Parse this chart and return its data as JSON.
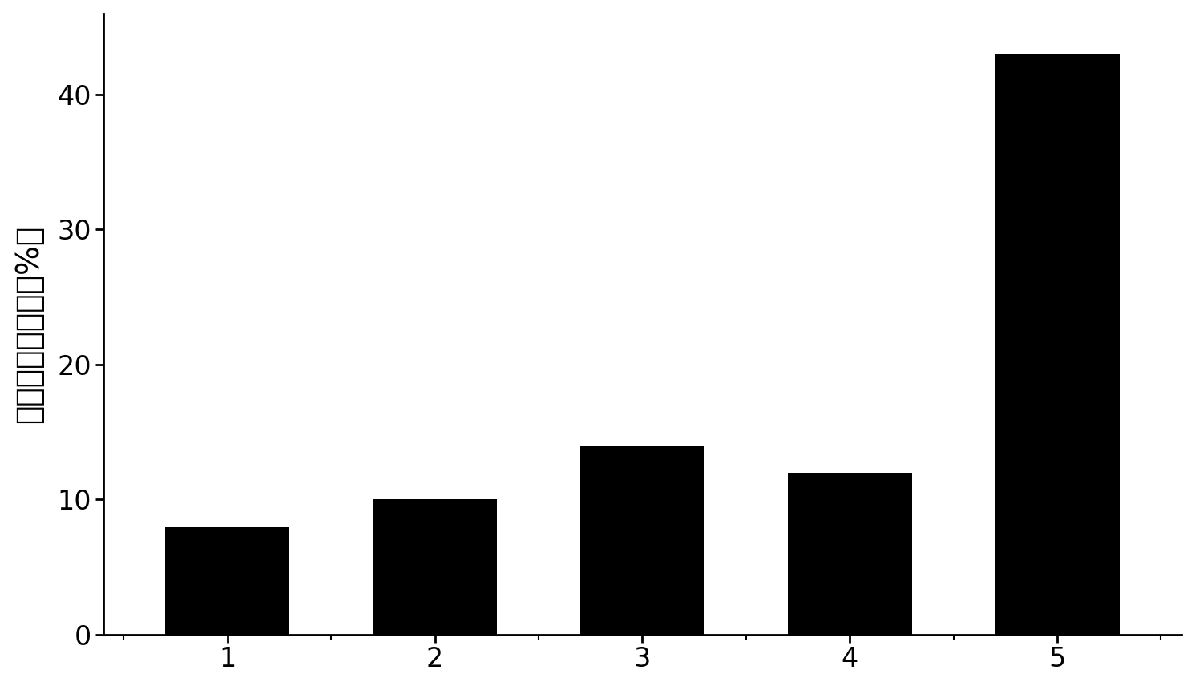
{
  "categories": [
    "1",
    "2",
    "3",
    "4",
    "5"
  ],
  "values": [
    8.0,
    10.0,
    14.0,
    12.0,
    43.0
  ],
  "bar_color": "#000000",
  "bar_width": 0.6,
  "ylabel": "生物素标记效率（%）",
  "ylim": [
    0,
    46
  ],
  "yticks": [
    0,
    10,
    20,
    30,
    40
  ],
  "ylabel_fontsize": 28,
  "tick_fontsize": 24,
  "background_color": "#ffffff",
  "bar_edge_color": "#000000",
  "spine_linewidth": 2.0,
  "figwidth": 14.91,
  "figheight": 8.56
}
